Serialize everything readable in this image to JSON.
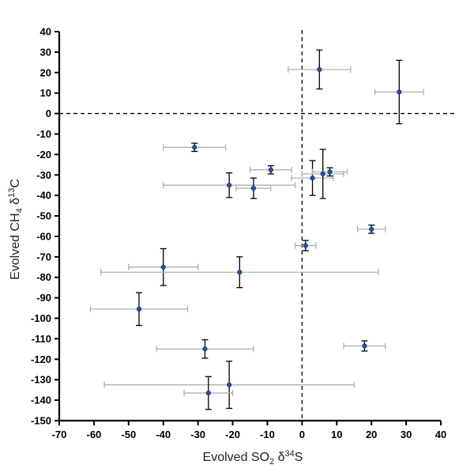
{
  "chart_data": {
    "type": "scatter",
    "title": "",
    "xlabel": {
      "prefix": "Evolved SO",
      "sub": "2",
      "mid": " δ",
      "sup": "34",
      "suffix": "S"
    },
    "ylabel": {
      "prefix": "Evolved CH",
      "sub": "4",
      "mid": " δ",
      "sup": "13",
      "suffix": "C"
    },
    "xlim": [
      -70,
      40
    ],
    "ylim": [
      -150,
      40
    ],
    "xticks": [
      "-70",
      "-60",
      "-50",
      "-40",
      "-30",
      "-20",
      "-10",
      "0",
      "10",
      "20",
      "30",
      "40"
    ],
    "yticks": [
      "40",
      "30",
      "20",
      "10",
      "0",
      "-10",
      "-20",
      "-30",
      "-40",
      "-50",
      "-60",
      "-70",
      "-80",
      "-90",
      "-100",
      "-110",
      "-120",
      "-130",
      "-140",
      "-150"
    ],
    "grid": false,
    "reference_lines": {
      "x": 0,
      "y": 0,
      "style": "dashed"
    },
    "marker_color": "#1f4fb5",
    "xerr_color": "#b0b0b0",
    "yerr_color": "#000000",
    "points": [
      {
        "x": 5,
        "y": 21.5,
        "xerr": 9,
        "yerr": 9.5
      },
      {
        "x": 28,
        "y": 10.5,
        "xerr": 7,
        "yerr": 15.5
      },
      {
        "x": -31,
        "y": -16.5,
        "xerr": 9,
        "yerr": 2
      },
      {
        "x": -9,
        "y": -27.5,
        "xerr": 6,
        "yerr": 2
      },
      {
        "x": -21,
        "y": -35,
        "xerr": 19,
        "yerr": 6
      },
      {
        "x": -14,
        "y": -36.5,
        "xerr": 5,
        "yerr": 5
      },
      {
        "x": 3,
        "y": -31.5,
        "xerr": 6,
        "yerr": 8.5
      },
      {
        "x": 6,
        "y": -29.5,
        "xerr": 6,
        "yerr": 12
      },
      {
        "x": 8,
        "y": -28.5,
        "xerr": 5,
        "yerr": 2
      },
      {
        "x": 20,
        "y": -56.5,
        "xerr": 4,
        "yerr": 2
      },
      {
        "x": 1,
        "y": -64.5,
        "xerr": 3,
        "yerr": 2.5
      },
      {
        "x": -40,
        "y": -75,
        "xerr": 10,
        "yerr": 9
      },
      {
        "x": -18,
        "y": -77.5,
        "xerr": 40,
        "yerr": 7.5
      },
      {
        "x": -47,
        "y": -95.5,
        "xerr": 14,
        "yerr": 8
      },
      {
        "x": -28,
        "y": -115,
        "xerr": 14,
        "yerr": 4.5
      },
      {
        "x": 18,
        "y": -113.5,
        "xerr": 6,
        "yerr": 2.5
      },
      {
        "x": -21,
        "y": -132.5,
        "xerr": 36,
        "yerr": 11.5
      },
      {
        "x": -27,
        "y": -136.5,
        "xerr": 7,
        "yerr": 8
      }
    ]
  }
}
